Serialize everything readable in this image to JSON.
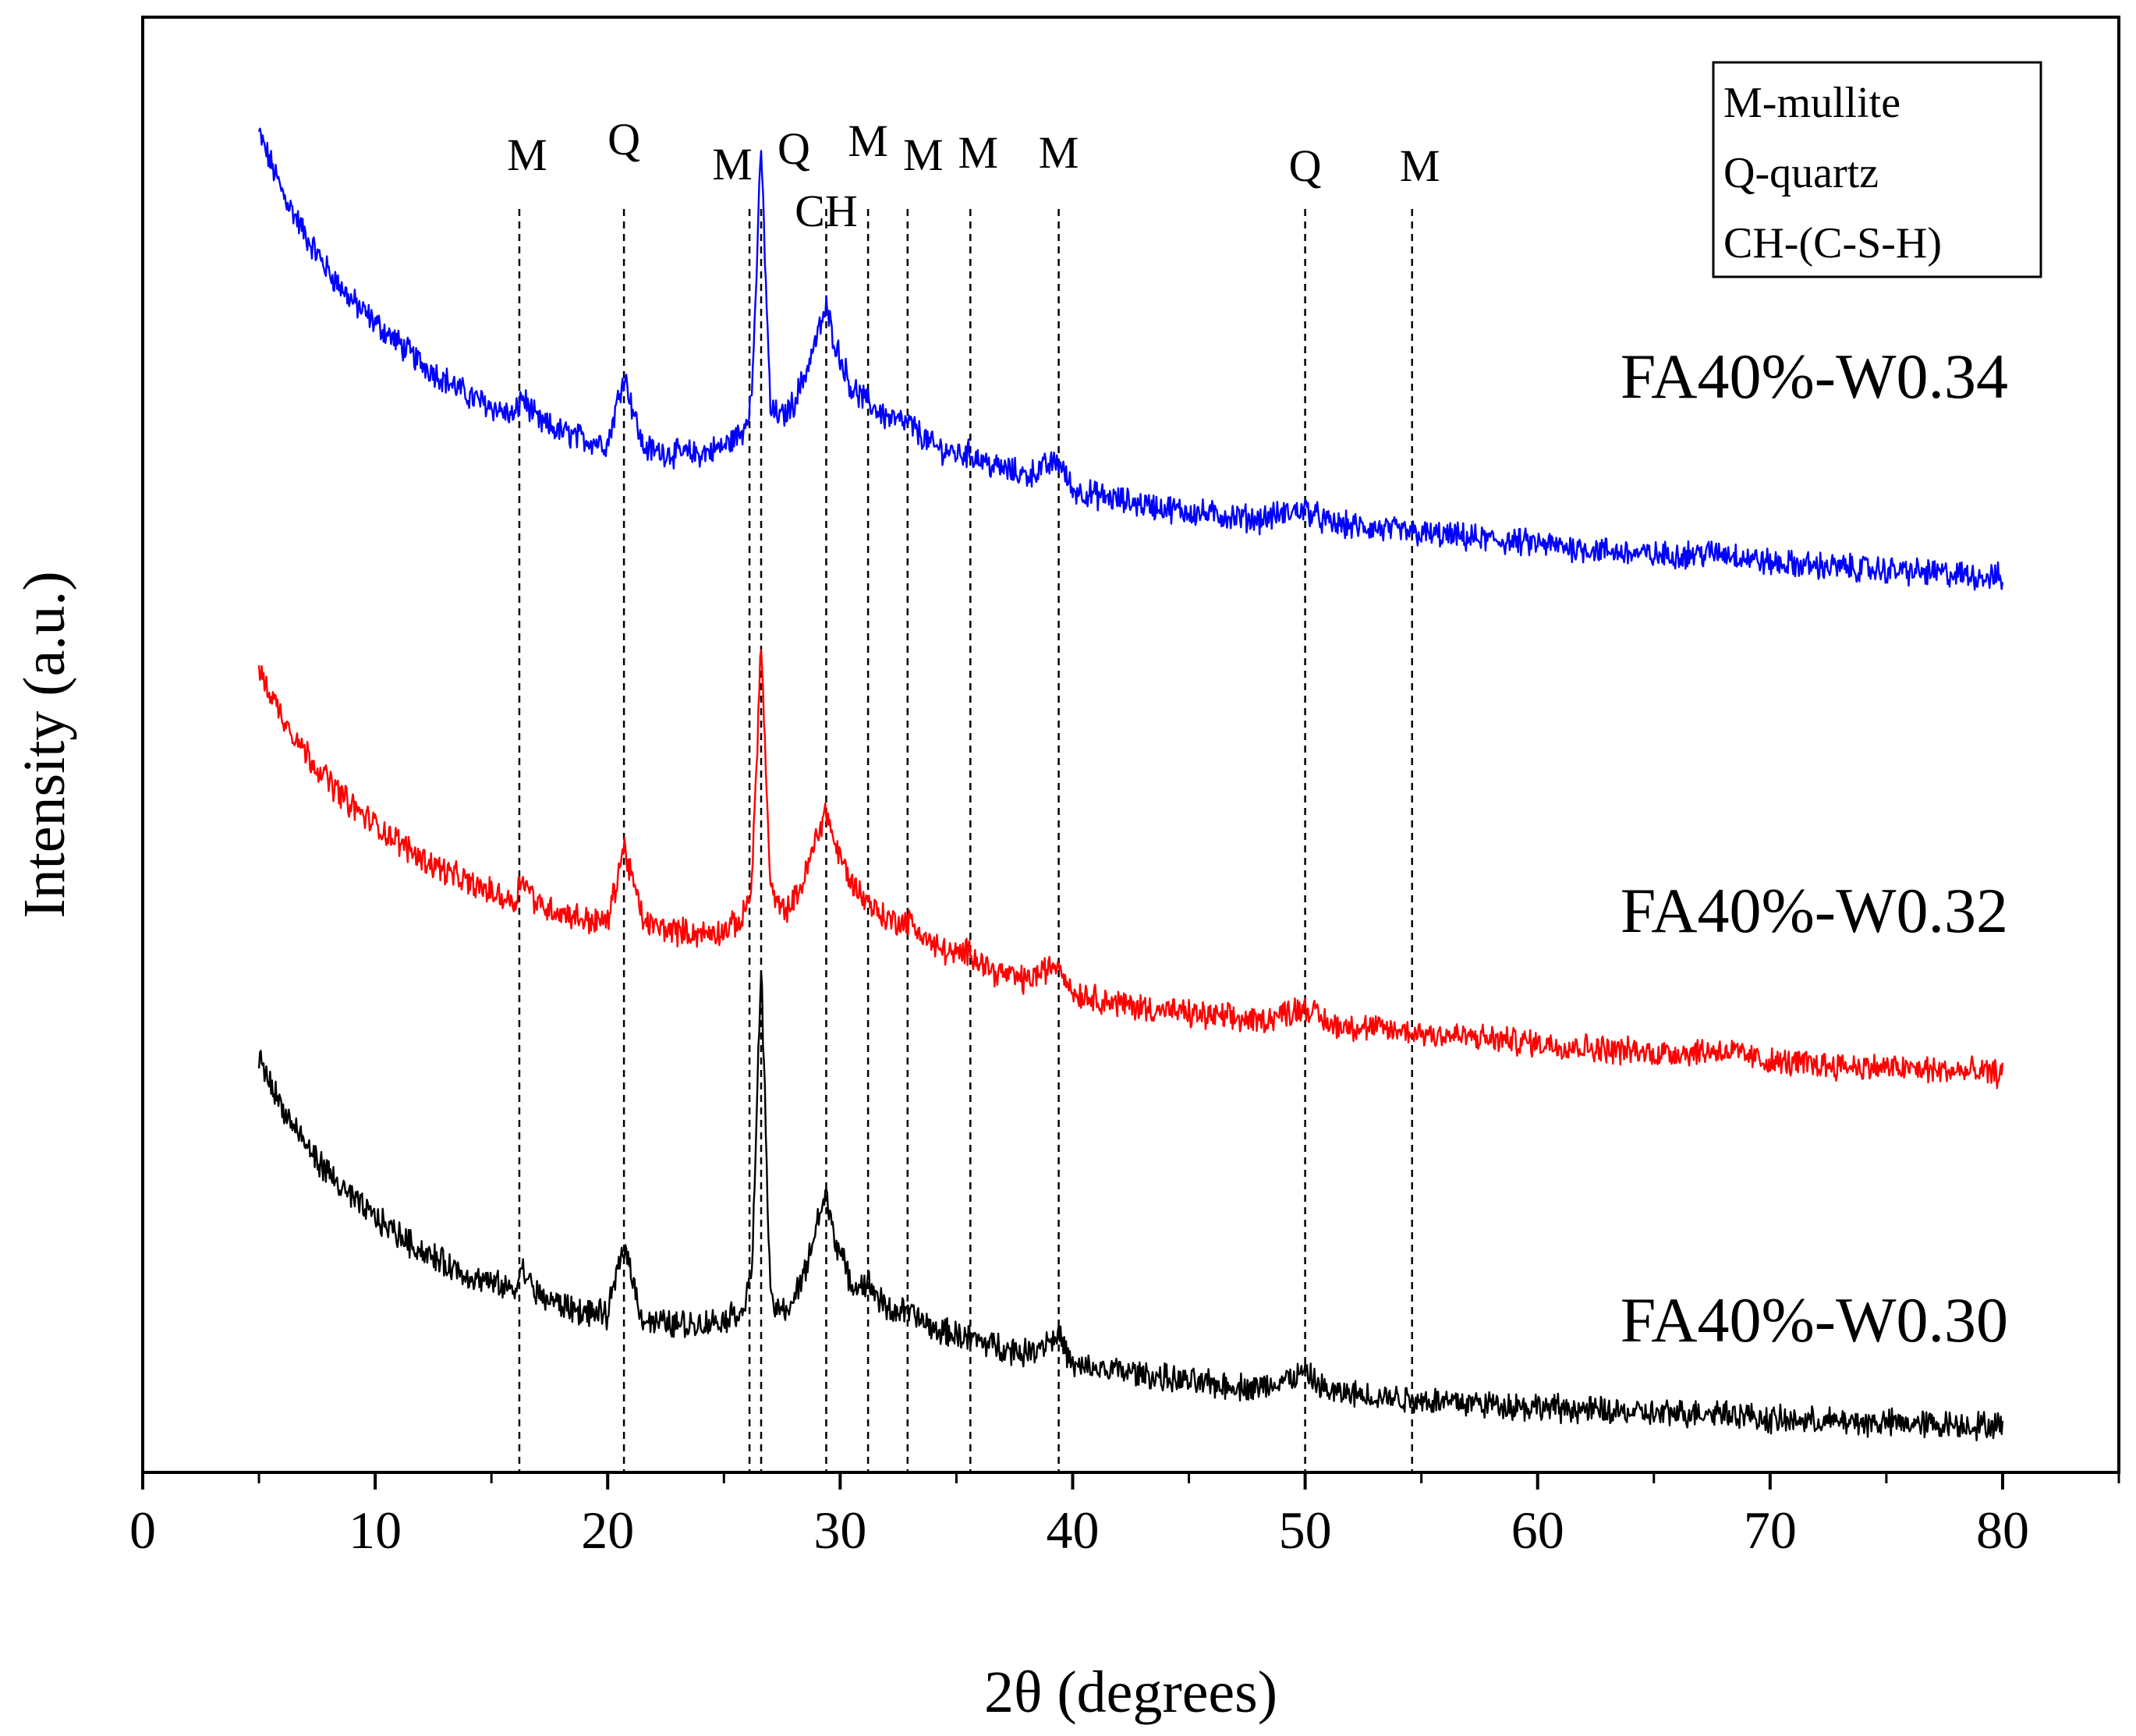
{
  "chart_data": {
    "type": "line",
    "title": "",
    "xlabel": "2θ (degrees)",
    "ylabel": "Intensity (a.u.)",
    "xlim": [
      0,
      85
    ],
    "ylim": [
      0,
      10
    ],
    "xticks": [
      0,
      10,
      20,
      30,
      40,
      50,
      60,
      70,
      80
    ],
    "xtick_labels": [
      "0",
      "10",
      "20",
      "30",
      "40",
      "50",
      "60",
      "70",
      "80"
    ],
    "yticks_shown": false,
    "grid": false,
    "legend_box": {
      "placement": "top-right",
      "entries": [
        "M-mullite",
        "Q-quartz",
        "CH-(C-S-H)"
      ]
    },
    "reference_lines": [
      {
        "x": 16.2,
        "label": "M"
      },
      {
        "x": 20.7,
        "label": "Q"
      },
      {
        "x": 26.1,
        "label": "M"
      },
      {
        "x": 26.6,
        "label": "Q"
      },
      {
        "x": 29.4,
        "label": "CH"
      },
      {
        "x": 31.2,
        "label": "M"
      },
      {
        "x": 32.9,
        "label": "M"
      },
      {
        "x": 35.6,
        "label": "M"
      },
      {
        "x": 39.4,
        "label": "M"
      },
      {
        "x": 50.0,
        "label": "Q"
      },
      {
        "x": 54.6,
        "label": "M"
      }
    ],
    "series": [
      {
        "name": "FA40%-W0.34",
        "color": "#0000ff",
        "x": [
          5,
          6,
          7,
          8,
          9,
          10,
          12,
          14,
          16,
          16.3,
          17,
          18,
          19,
          20,
          20.7,
          21.5,
          22,
          23,
          24,
          25,
          25.8,
          26.2,
          26.6,
          27,
          27.5,
          28,
          28.5,
          29,
          29.4,
          29.8,
          30.5,
          31.2,
          32,
          33,
          34,
          35,
          35.6,
          36.5,
          38,
          39.4,
          40,
          42,
          45,
          48,
          50,
          51,
          55,
          60,
          65,
          68,
          70,
          75,
          80
        ],
        "y": [
          9.2,
          8.8,
          8.5,
          8.25,
          8.05,
          7.9,
          7.62,
          7.4,
          7.25,
          7.4,
          7.22,
          7.15,
          7.1,
          7.07,
          7.55,
          7.05,
          7.02,
          7.0,
          7.0,
          7.05,
          7.15,
          7.4,
          9.1,
          7.3,
          7.25,
          7.35,
          7.55,
          7.8,
          8.0,
          7.75,
          7.45,
          7.35,
          7.25,
          7.2,
          7.05,
          7.0,
          7.0,
          6.92,
          6.85,
          6.95,
          6.75,
          6.68,
          6.6,
          6.55,
          6.62,
          6.52,
          6.45,
          6.38,
          6.3,
          6.32,
          6.25,
          6.2,
          6.15
        ]
      },
      {
        "name": "FA40%-W0.32",
        "color": "#ff0000",
        "x": [
          5,
          6,
          7,
          8,
          9,
          10,
          12,
          14,
          16,
          16.3,
          17,
          18,
          19,
          20,
          20.7,
          21.5,
          22,
          23,
          24,
          25,
          25.8,
          26.2,
          26.6,
          27,
          27.5,
          28,
          28.5,
          29,
          29.4,
          29.8,
          30.5,
          31.2,
          32,
          33,
          34,
          35,
          35.6,
          36.5,
          38,
          39.4,
          40,
          42,
          45,
          48,
          50,
          51,
          55,
          60,
          65,
          68,
          70,
          75,
          80
        ],
        "y": [
          5.5,
          5.2,
          4.95,
          4.75,
          4.58,
          4.45,
          4.22,
          4.05,
          3.92,
          4.1,
          3.9,
          3.85,
          3.8,
          3.78,
          4.3,
          3.8,
          3.75,
          3.72,
          3.7,
          3.72,
          3.8,
          4.05,
          5.7,
          4.0,
          3.85,
          3.92,
          4.1,
          4.38,
          4.55,
          4.3,
          4.05,
          3.92,
          3.8,
          3.78,
          3.62,
          3.55,
          3.58,
          3.45,
          3.38,
          3.5,
          3.3,
          3.22,
          3.15,
          3.1,
          3.2,
          3.08,
          3.02,
          2.95,
          2.88,
          2.9,
          2.82,
          2.78,
          2.74
        ]
      },
      {
        "name": "FA40%-W0.30",
        "color": "#000000",
        "x": [
          5,
          6,
          7,
          8,
          9,
          10,
          12,
          14,
          16,
          16.3,
          17,
          18,
          19,
          20,
          20.7,
          21.5,
          22,
          23,
          24,
          25,
          25.8,
          26.2,
          26.6,
          27,
          27.5,
          28,
          28.5,
          29,
          29.4,
          29.8,
          30.5,
          31.2,
          32,
          33,
          34,
          35,
          35.6,
          36.5,
          38,
          39.4,
          40,
          42,
          45,
          48,
          50,
          51,
          55,
          60,
          65,
          68,
          70,
          75,
          80
        ],
        "y": [
          2.85,
          2.5,
          2.25,
          2.05,
          1.88,
          1.75,
          1.52,
          1.35,
          1.25,
          1.4,
          1.22,
          1.15,
          1.1,
          1.08,
          1.58,
          1.05,
          1.03,
          1.02,
          1.02,
          1.05,
          1.12,
          1.35,
          3.5,
          1.18,
          1.1,
          1.18,
          1.38,
          1.72,
          1.9,
          1.6,
          1.28,
          1.3,
          1.12,
          1.1,
          0.98,
          0.95,
          0.92,
          0.88,
          0.82,
          0.95,
          0.72,
          0.7,
          0.62,
          0.58,
          0.68,
          0.55,
          0.5,
          0.45,
          0.4,
          0.42,
          0.36,
          0.34,
          0.32
        ]
      }
    ]
  }
}
